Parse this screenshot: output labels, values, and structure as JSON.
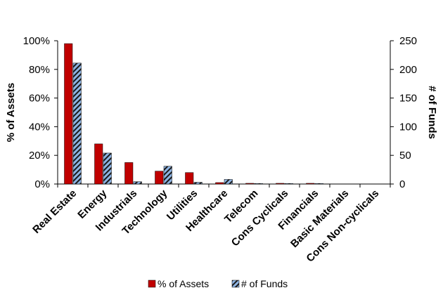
{
  "chart_data": {
    "type": "bar",
    "categories": [
      "Real Estate",
      "Energy",
      "Industrials",
      "Technology",
      "Utilities",
      "Healthcare",
      "Telecom",
      "Cons Cyclicals",
      "Financials",
      "Basic Materials",
      "Cons Non-cyclicals"
    ],
    "series": [
      {
        "name": "% of Assets",
        "axis": "left",
        "color": "#c00000",
        "values": [
          98,
          28,
          15,
          9,
          8,
          1,
          0.5,
          0.5,
          0.5,
          0,
          0
        ]
      },
      {
        "name": "# of Funds",
        "axis": "right",
        "color": "#8db3e2",
        "pattern": "hatched",
        "values": [
          211,
          54,
          4,
          31,
          3,
          8,
          1,
          1,
          1,
          0,
          0
        ]
      }
    ],
    "ylabel": "% of Assets",
    "ylabel_right": "# of Funds",
    "ylim": [
      0,
      100
    ],
    "ylim_right": [
      0,
      250
    ],
    "yticks": [
      "0%",
      "20%",
      "40%",
      "60%",
      "80%",
      "100%"
    ],
    "yticks_right": [
      "0",
      "50",
      "100",
      "150",
      "200",
      "250"
    ],
    "grid": false,
    "legend_position": "bottom"
  }
}
